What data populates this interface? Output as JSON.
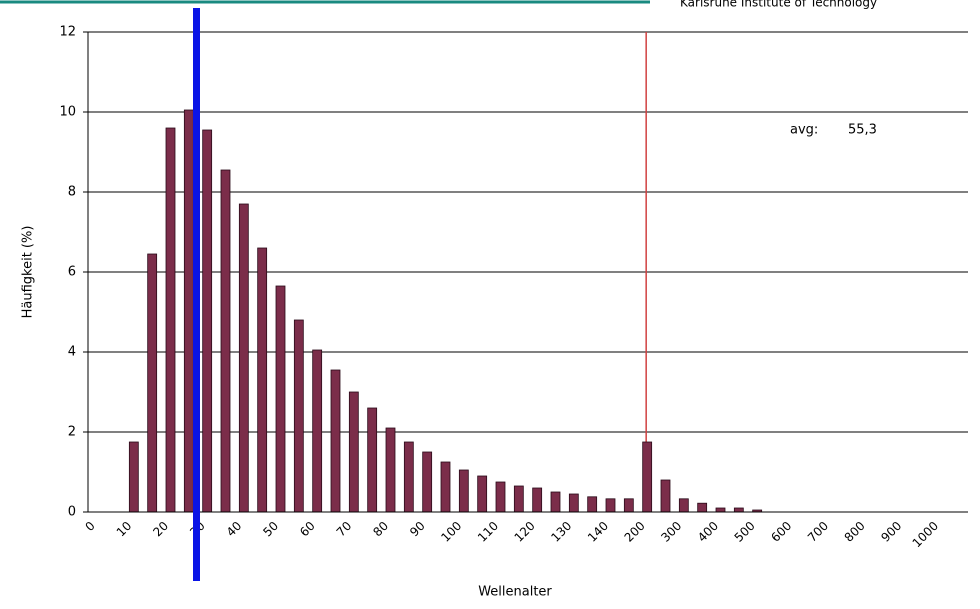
{
  "header": {
    "text": "Karlsruhe Institute of Technology"
  },
  "chart_data": {
    "type": "bar",
    "x_label": "Wellenalter",
    "y_label": "Häufigkeit (%)",
    "categories": [
      "0",
      null,
      "10",
      null,
      "20",
      null,
      "30",
      null,
      "40",
      null,
      "50",
      null,
      "60",
      null,
      "70",
      null,
      "80",
      null,
      "90",
      null,
      "100",
      null,
      "110",
      null,
      "120",
      null,
      "130",
      null,
      "140",
      null,
      "200",
      null,
      "300",
      null,
      "400",
      null,
      "500",
      null,
      "600",
      null,
      "700",
      null,
      "800",
      null,
      "900",
      null,
      "1000",
      null
    ],
    "values": [
      0,
      0,
      1.75,
      6.45,
      9.6,
      10.05,
      9.55,
      8.55,
      7.7,
      6.6,
      5.65,
      4.8,
      4.05,
      3.55,
      3.0,
      2.6,
      2.1,
      1.75,
      1.5,
      1.25,
      1.05,
      0.9,
      0.75,
      0.65,
      0.6,
      0.5,
      0.45,
      0.38,
      0.33,
      0.33,
      1.75,
      0.8,
      0.33,
      0.22,
      0.1,
      0.1,
      0.05,
      0,
      0,
      0,
      0,
      0,
      0,
      0,
      0,
      0,
      0,
      0
    ],
    "color": "#7b2d4a",
    "ylim": [
      0,
      12
    ],
    "yticks": [
      0,
      2,
      4,
      6,
      8,
      10,
      12
    ],
    "grid": true,
    "reference_line": {
      "x": "200",
      "color": "#d04040"
    },
    "annotations": [
      "avg:",
      "55,3"
    ]
  }
}
